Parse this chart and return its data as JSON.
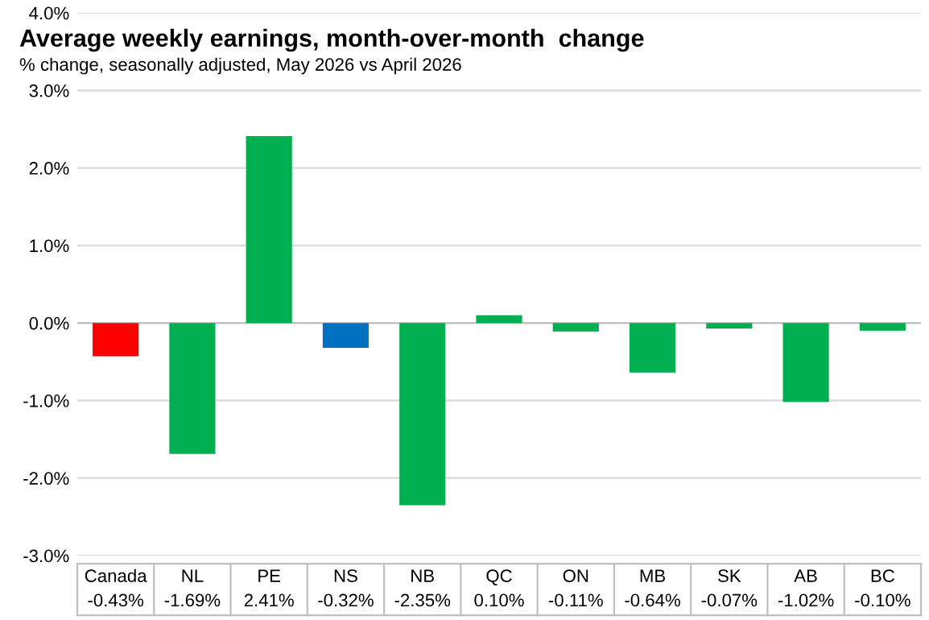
{
  "chart_data": {
    "type": "bar",
    "title": "Average weekly earnings, month-over-month  change",
    "subtitle": "% change, seasonally adjusted, May 2026 vs April 2026",
    "categories": [
      "Canada",
      "NL",
      "PE",
      "NS",
      "NB",
      "QC",
      "ON",
      "MB",
      "SK",
      "AB",
      "BC"
    ],
    "values": [
      -0.43,
      -1.69,
      2.41,
      -0.32,
      -2.35,
      0.1,
      -0.11,
      -0.64,
      -0.07,
      -1.02,
      -0.1
    ],
    "value_labels": [
      "-0.43%",
      "-1.69%",
      "2.41%",
      "-0.32%",
      "-2.35%",
      "0.10%",
      "-0.11%",
      "-0.64%",
      "-0.07%",
      "-1.02%",
      "-0.10%"
    ],
    "colors": [
      "#ff0000",
      "#00b050",
      "#00b050",
      "#0070c0",
      "#00b050",
      "#00b050",
      "#00b050",
      "#00b050",
      "#00b050",
      "#00b050",
      "#00b050"
    ],
    "ylim": [
      -3,
      4
    ],
    "yticks": [
      {
        "value": -3,
        "label": "-3.0%"
      },
      {
        "value": -2,
        "label": "-2.0%"
      },
      {
        "value": -1,
        "label": "-1.0%"
      },
      {
        "value": 0,
        "label": "0.0%"
      },
      {
        "value": 1,
        "label": "1.0%"
      },
      {
        "value": 2,
        "label": "2.0%"
      },
      {
        "value": 3,
        "label": "3.0%"
      },
      {
        "value": 4,
        "label": "4.0%"
      }
    ],
    "grid": "y"
  }
}
